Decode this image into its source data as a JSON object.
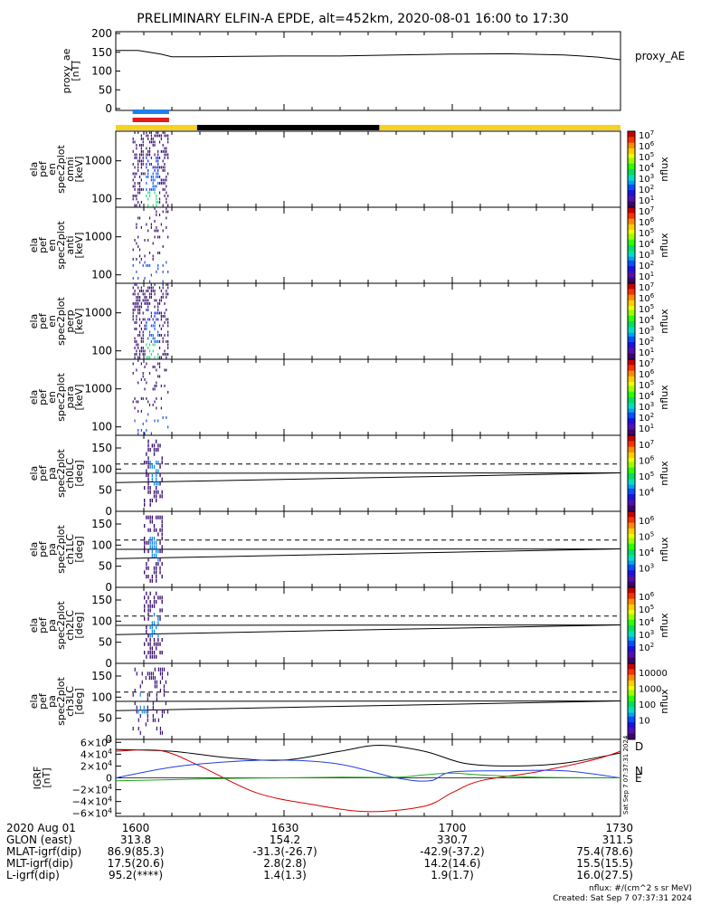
{
  "title": "PRELIMINARY ELFIN-A EPDE, alt=452km, 2020-08-01 16:00 to 17:30",
  "colors": {
    "ae_line": "#000000",
    "bar_yellow": "#f7d21e",
    "bar_black": "#000000",
    "marker_blue": "#1e7ff0",
    "marker_red": "#e21b1b",
    "igrf_D": "#d80000",
    "igrf_N": "#1f3fe0",
    "igrf_E": "#1fa51f",
    "igrf_total": "#000000"
  },
  "ae_panel": {
    "ylabel_lines": [
      "proxy_ae",
      "[nT]"
    ],
    "legend": "proxy_AE",
    "yticks": [
      "200",
      "150",
      "100",
      "50",
      "0"
    ]
  },
  "spec_panels": [
    {
      "ylabel_lines": [
        "ela",
        "pef",
        "en",
        "spec2plot",
        "omni",
        "[keV]"
      ],
      "yticks": [
        "1000",
        "100"
      ],
      "cb_label": "nflux",
      "cb_ticks": [
        "10^7",
        "10^6",
        "10^5",
        "10^4",
        "10^3",
        "10^2",
        "10^1"
      ]
    },
    {
      "ylabel_lines": [
        "ela",
        "pef",
        "en",
        "spec2plot",
        "anti",
        "[keV]"
      ],
      "yticks": [
        "1000",
        "100"
      ],
      "cb_label": "nflux",
      "cb_ticks": [
        "10^7",
        "10^6",
        "10^5",
        "10^4",
        "10^3",
        "10^2",
        "10^1"
      ]
    },
    {
      "ylabel_lines": [
        "ela",
        "pef",
        "en",
        "spec2plot",
        "perp",
        "[keV]"
      ],
      "yticks": [
        "1000",
        "100"
      ],
      "cb_label": "nflux",
      "cb_ticks": [
        "10^7",
        "10^6",
        "10^5",
        "10^4",
        "10^3",
        "10^2",
        "10^1"
      ]
    },
    {
      "ylabel_lines": [
        "ela",
        "pef",
        "en",
        "spec2plot",
        "para",
        "[keV]"
      ],
      "yticks": [
        "1000",
        "100"
      ],
      "cb_label": "nflux",
      "cb_ticks": [
        "10^7",
        "10^6",
        "10^5",
        "10^4",
        "10^3",
        "10^2",
        "10^1"
      ]
    }
  ],
  "pa_panels": [
    {
      "ylabel_lines": [
        "ela",
        "pef",
        "pa",
        "spec2plot",
        "ch0LC",
        "[deg]"
      ],
      "yticks": [
        "150",
        "100",
        "50",
        "0"
      ],
      "cb_label": "nflux",
      "cb_ticks": [
        "10^7",
        "10^6",
        "10^5",
        "10^4"
      ]
    },
    {
      "ylabel_lines": [
        "ela",
        "pef",
        "pa",
        "spec2plot",
        "ch1LC",
        "[deg]"
      ],
      "yticks": [
        "150",
        "100",
        "50",
        "0"
      ],
      "cb_label": "nflux",
      "cb_ticks": [
        "10^6",
        "10^5",
        "10^4",
        "10^3"
      ]
    },
    {
      "ylabel_lines": [
        "ela",
        "pef",
        "pa",
        "spec2plot",
        "ch2LC",
        "[deg]"
      ],
      "yticks": [
        "150",
        "100",
        "50",
        "0"
      ],
      "cb_label": "nflux",
      "cb_ticks": [
        "10^6",
        "10^5",
        "10^4",
        "10^3",
        "10^2"
      ]
    },
    {
      "ylabel_lines": [
        "ela",
        "pef",
        "pa",
        "spec2plot",
        "ch3LC",
        "[deg]"
      ],
      "yticks": [
        "150",
        "100",
        "50",
        "0"
      ],
      "cb_label": "nflux",
      "cb_ticks": [
        "10000",
        "1000",
        "100",
        "10"
      ]
    }
  ],
  "igrf_panel": {
    "ylabel_lines": [
      "IGRF",
      "[nT]"
    ],
    "yticks": [
      "6×10^4",
      "4×10^4",
      "2×10^4",
      "0",
      "−2×10^4",
      "−4×10^4",
      "−6×10^4"
    ],
    "legend": [
      "D",
      "N",
      "E"
    ],
    "stamp": "Sat Sep  7 07:37:31 2024"
  },
  "footer": {
    "rows": [
      [
        "2020 Aug 01",
        "1600",
        "1630",
        "1700",
        "1730"
      ],
      [
        "GLON (east)",
        "313.8",
        "154.2",
        "330.7",
        "311.5"
      ],
      [
        "MLAT-igrf(dip)",
        "86.9(85.3)",
        "-31.3(-26.7)",
        "-42.9(-37.2)",
        "75.4(78.6)"
      ],
      [
        "MLT-igrf(dip)",
        "17.5(20.6)",
        "2.8(2.8)",
        "14.2(14.6)",
        "15.5(15.5)"
      ],
      [
        "L-igrf(dip)",
        "95.2(****)",
        "1.4(1.3)",
        "1.9(1.7)",
        "16.0(27.5)"
      ]
    ],
    "units_note": "nflux: #/(cm^2 s sr MeV)",
    "created": "Created: Sat Sep  7 07:37:31 2024"
  },
  "chart_data": {
    "type": "line",
    "x_unit": "minutes after 16:00 UT",
    "x_range": [
      0,
      90
    ],
    "ae_series": [
      {
        "x": 0,
        "y": 155
      },
      {
        "x": 4,
        "y": 155
      },
      {
        "x": 8,
        "y": 145
      },
      {
        "x": 10,
        "y": 138
      },
      {
        "x": 15,
        "y": 138
      },
      {
        "x": 30,
        "y": 140
      },
      {
        "x": 40,
        "y": 140
      },
      {
        "x": 50,
        "y": 143
      },
      {
        "x": 60,
        "y": 145
      },
      {
        "x": 70,
        "y": 146
      },
      {
        "x": 80,
        "y": 143
      },
      {
        "x": 86,
        "y": 137
      },
      {
        "x": 90,
        "y": 130
      }
    ],
    "ae_ylim": [
      0,
      200
    ],
    "orbit_bar": [
      {
        "start": 0,
        "end": 14.5,
        "color": "yellow"
      },
      {
        "start": 14.5,
        "end": 47,
        "color": "black"
      },
      {
        "start": 47,
        "end": 90,
        "color": "yellow"
      }
    ],
    "science_markers": [
      {
        "start": 3,
        "end": 9.5,
        "color": "blue"
      },
      {
        "start": 3,
        "end": 9.5,
        "color": "red"
      }
    ],
    "spectra_time_range": [
      3,
      9.5
    ],
    "energy_range_keV": [
      60,
      6000
    ],
    "pa_ylim": [
      0,
      180
    ],
    "pa_guides": {
      "dashed_deg": 112,
      "solid_start_deg": [
        90,
        68
      ],
      "solid_end_deg": [
        91,
        91
      ]
    },
    "igrf_ylim": [
      -65000,
      65000
    ],
    "igrf_series": [
      {
        "name": "total",
        "points": [
          [
            0,
            48000
          ],
          [
            10,
            45000
          ],
          [
            20,
            34000
          ],
          [
            30,
            30000
          ],
          [
            40,
            45000
          ],
          [
            47,
            55000
          ],
          [
            55,
            45000
          ],
          [
            62,
            25000
          ],
          [
            70,
            20000
          ],
          [
            80,
            25000
          ],
          [
            90,
            42000
          ]
        ]
      },
      {
        "name": "D",
        "points": [
          [
            0,
            45000
          ],
          [
            8,
            46000
          ],
          [
            15,
            20000
          ],
          [
            25,
            -25000
          ],
          [
            35,
            -45000
          ],
          [
            45,
            -57000
          ],
          [
            55,
            -48000
          ],
          [
            60,
            -25000
          ],
          [
            65,
            -5000
          ],
          [
            75,
            10000
          ],
          [
            85,
            30000
          ],
          [
            90,
            45000
          ]
        ]
      },
      {
        "name": "N",
        "points": [
          [
            0,
            0
          ],
          [
            10,
            18000
          ],
          [
            20,
            27000
          ],
          [
            30,
            30000
          ],
          [
            40,
            23000
          ],
          [
            50,
            0
          ],
          [
            56,
            -5000
          ],
          [
            60,
            10000
          ],
          [
            70,
            12000
          ],
          [
            80,
            12000
          ],
          [
            90,
            0
          ]
        ]
      },
      {
        "name": "E",
        "points": [
          [
            0,
            -5000
          ],
          [
            10,
            -3000
          ],
          [
            20,
            -1000
          ],
          [
            30,
            0
          ],
          [
            40,
            1000
          ],
          [
            50,
            1000
          ],
          [
            55,
            5000
          ],
          [
            60,
            8000
          ],
          [
            65,
            5000
          ],
          [
            75,
            1000
          ],
          [
            90,
            0
          ]
        ]
      }
    ]
  }
}
